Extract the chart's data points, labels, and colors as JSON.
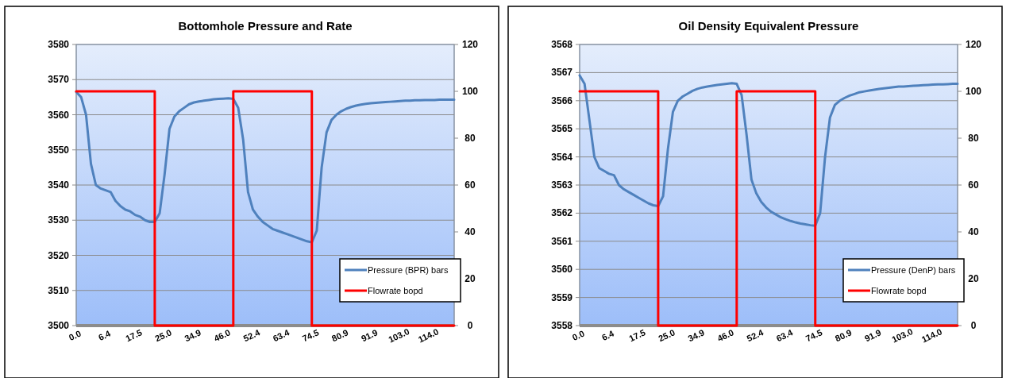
{
  "chart_data": [
    {
      "type": "line",
      "title": "Bottomhole Pressure  and Rate",
      "categories": [
        "0.0",
        null,
        null,
        null,
        null,
        null,
        "6.4",
        null,
        null,
        null,
        null,
        null,
        "17.5",
        null,
        null,
        null,
        null,
        null,
        "25.0",
        null,
        null,
        null,
        null,
        null,
        "34.9",
        null,
        null,
        null,
        null,
        null,
        "46.0",
        null,
        null,
        null,
        null,
        null,
        "52.4",
        null,
        null,
        null,
        null,
        null,
        "63.4",
        null,
        null,
        null,
        null,
        null,
        "74.5",
        null,
        null,
        null,
        null,
        null,
        "80.9",
        null,
        null,
        null,
        null,
        null,
        "91.9",
        null,
        null,
        null,
        null,
        null,
        "103.0",
        null,
        null,
        null,
        null,
        null,
        "114.0",
        null,
        null,
        null,
        null,
        null
      ],
      "series": [
        {
          "name": "Pressure (BPR) bars",
          "color": "#4f81bd",
          "values": [
            3566.5,
            3565,
            3560,
            3546,
            3540,
            3539,
            3538.5,
            3538,
            3535.5,
            3534,
            3533,
            3532.5,
            3531.5,
            3531,
            3530,
            3529.5,
            3529.5,
            3532,
            3543,
            3556,
            3559.5,
            3561,
            3562,
            3563,
            3563.5,
            3563.8,
            3564,
            3564.2,
            3564.4,
            3564.5,
            3564.6,
            3564.7,
            3564.5,
            3562,
            3553,
            3538,
            3533,
            3531,
            3529.5,
            3528.5,
            3527.5,
            3527,
            3526.5,
            3526,
            3525.5,
            3525,
            3524.5,
            3524,
            3523.7,
            3527,
            3545,
            3555,
            3558.5,
            3560,
            3561,
            3561.7,
            3562.2,
            3562.6,
            3562.9,
            3563.1,
            3563.3,
            3563.4,
            3563.5,
            3563.6,
            3563.7,
            3563.8,
            3563.9,
            3564,
            3564,
            3564.1,
            3564.1,
            3564.2,
            3564.2,
            3564.2,
            3564.3,
            3564.3,
            3564.3,
            3564.3
          ]
        },
        {
          "name": "Flowrate bopd",
          "type": "step",
          "axis": "y2",
          "color": "#ff0000",
          "values": [
            100,
            100,
            100,
            100,
            100,
            100,
            100,
            100,
            100,
            100,
            100,
            100,
            100,
            100,
            100,
            100,
            0,
            0,
            0,
            0,
            0,
            0,
            0,
            0,
            0,
            0,
            0,
            0,
            0,
            0,
            0,
            0,
            100,
            100,
            100,
            100,
            100,
            100,
            100,
            100,
            100,
            100,
            100,
            100,
            100,
            100,
            100,
            100,
            0,
            0,
            0,
            0,
            0,
            0,
            0,
            0,
            0,
            0,
            0,
            0,
            0,
            0,
            0,
            0,
            0,
            0,
            0,
            0,
            0,
            0,
            0,
            0,
            0,
            0,
            0,
            0,
            0,
            0
          ]
        }
      ],
      "ylim": [
        3500,
        3580
      ],
      "yticks": [
        3500,
        3510,
        3520,
        3530,
        3540,
        3550,
        3560,
        3570,
        3580
      ],
      "y2lim": [
        0,
        120
      ],
      "y2ticks": [
        0,
        20,
        40,
        60,
        80,
        100,
        120
      ],
      "grid": "y",
      "legend": "bottom right"
    },
    {
      "type": "line",
      "title": "Oil Density Equivalent Pressure",
      "categories": [
        "0.0",
        null,
        null,
        null,
        null,
        null,
        "6.4",
        null,
        null,
        null,
        null,
        null,
        "17.5",
        null,
        null,
        null,
        null,
        null,
        "25.0",
        null,
        null,
        null,
        null,
        null,
        "34.9",
        null,
        null,
        null,
        null,
        null,
        "46.0",
        null,
        null,
        null,
        null,
        null,
        "52.4",
        null,
        null,
        null,
        null,
        null,
        "63.4",
        null,
        null,
        null,
        null,
        null,
        "74.5",
        null,
        null,
        null,
        null,
        null,
        "80.9",
        null,
        null,
        null,
        null,
        null,
        "91.9",
        null,
        null,
        null,
        null,
        null,
        "103.0",
        null,
        null,
        null,
        null,
        null,
        "114.0",
        null,
        null,
        null,
        null,
        null
      ],
      "series": [
        {
          "name": "Pressure (DenP) bars",
          "color": "#4f81bd",
          "values": [
            3566.9,
            3566.6,
            3565.3,
            3564.0,
            3563.6,
            3563.5,
            3563.4,
            3563.35,
            3563.0,
            3562.85,
            3562.75,
            3562.65,
            3562.55,
            3562.45,
            3562.35,
            3562.28,
            3562.25,
            3562.6,
            3564.3,
            3565.6,
            3566.0,
            3566.15,
            3566.25,
            3566.35,
            3566.42,
            3566.47,
            3566.5,
            3566.53,
            3566.56,
            3566.58,
            3566.6,
            3566.62,
            3566.6,
            3566.2,
            3564.8,
            3563.2,
            3562.7,
            3562.4,
            3562.2,
            3562.05,
            3561.95,
            3561.85,
            3561.78,
            3561.72,
            3561.67,
            3561.63,
            3561.6,
            3561.57,
            3561.55,
            3562.0,
            3564.0,
            3565.4,
            3565.85,
            3566.0,
            3566.1,
            3566.18,
            3566.24,
            3566.3,
            3566.33,
            3566.36,
            3566.39,
            3566.42,
            3566.44,
            3566.46,
            3566.48,
            3566.5,
            3566.5,
            3566.52,
            3566.53,
            3566.54,
            3566.55,
            3566.56,
            3566.57,
            3566.58,
            3566.58,
            3566.59,
            3566.6,
            3566.6
          ]
        },
        {
          "name": "Flowrate bopd",
          "type": "step",
          "axis": "y2",
          "color": "#ff0000",
          "values": [
            100,
            100,
            100,
            100,
            100,
            100,
            100,
            100,
            100,
            100,
            100,
            100,
            100,
            100,
            100,
            100,
            0,
            0,
            0,
            0,
            0,
            0,
            0,
            0,
            0,
            0,
            0,
            0,
            0,
            0,
            0,
            0,
            100,
            100,
            100,
            100,
            100,
            100,
            100,
            100,
            100,
            100,
            100,
            100,
            100,
            100,
            100,
            100,
            0,
            0,
            0,
            0,
            0,
            0,
            0,
            0,
            0,
            0,
            0,
            0,
            0,
            0,
            0,
            0,
            0,
            0,
            0,
            0,
            0,
            0,
            0,
            0,
            0,
            0,
            0,
            0,
            0,
            0
          ]
        }
      ],
      "ylim": [
        3558,
        3568
      ],
      "yticks": [
        3558,
        3559,
        3560,
        3561,
        3562,
        3563,
        3564,
        3565,
        3566,
        3567,
        3568
      ],
      "y2lim": [
        0,
        120
      ],
      "y2ticks": [
        0,
        20,
        40,
        60,
        80,
        100,
        120
      ],
      "grid": "y",
      "legend": "bottom right"
    }
  ]
}
